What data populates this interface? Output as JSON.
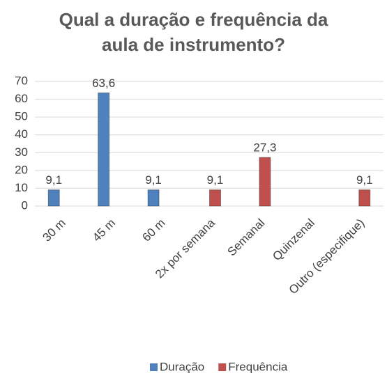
{
  "chart_data": {
    "type": "bar",
    "title": "Qual a duração e frequência da aula de instrumento?",
    "categories": [
      "30 m",
      "45 m",
      "60 m",
      "2x por semana",
      "Semanal",
      "Quinzenal",
      "Outro (especifique)"
    ],
    "series": [
      {
        "name": "Duração",
        "color": "#4f81bd",
        "values": [
          9.1,
          63.6,
          9.1,
          null,
          null,
          null,
          null
        ],
        "value_labels": [
          "9,1",
          "63,6",
          "9,1",
          null,
          null,
          null,
          null
        ]
      },
      {
        "name": "Frequência",
        "color": "#c0504d",
        "values": [
          null,
          null,
          null,
          9.1,
          27.3,
          null,
          9.1
        ],
        "value_labels": [
          null,
          null,
          null,
          "9,1",
          "27,3",
          null,
          "9,1"
        ]
      }
    ],
    "ylim": [
      0,
      70
    ],
    "yticks": [
      0,
      10,
      20,
      30,
      40,
      50,
      60,
      70
    ],
    "grid": true,
    "legend": "bottom"
  }
}
